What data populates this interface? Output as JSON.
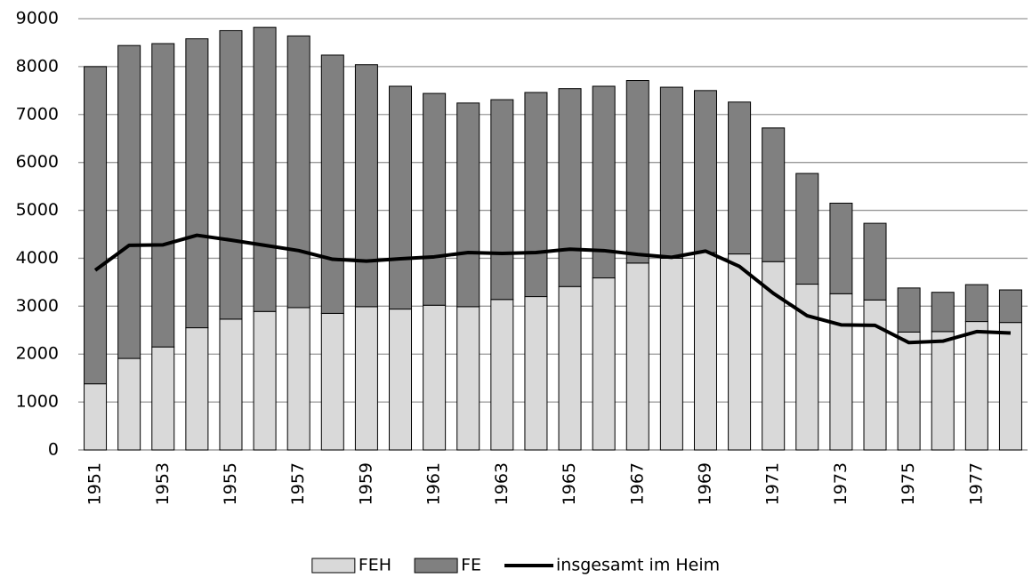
{
  "chart_data": {
    "type": "bar",
    "stacked": true,
    "categories": [
      "1951",
      null,
      "1953",
      null,
      "1955",
      null,
      "1957",
      null,
      "1959",
      null,
      "1961",
      null,
      "1963",
      null,
      "1965",
      null,
      "1967",
      null,
      "1969",
      null,
      "1971",
      null,
      "1973",
      null,
      "1975",
      null,
      "1977",
      null
    ],
    "series": [
      {
        "name": "FEH",
        "type": "bar",
        "color": "#d9d9d9",
        "values": [
          1380,
          1910,
          2150,
          2550,
          2730,
          2890,
          2970,
          2850,
          2990,
          2940,
          3020,
          2990,
          3140,
          3200,
          3410,
          3590,
          3900,
          4000,
          4120,
          4090,
          3930,
          3460,
          3260,
          3130,
          2460,
          2470,
          2680,
          2660
        ]
      },
      {
        "name": "FE",
        "type": "bar",
        "color": "#808080",
        "values": [
          6620,
          6530,
          6330,
          6030,
          6020,
          5930,
          5670,
          5390,
          5050,
          4650,
          4420,
          4250,
          4170,
          4260,
          4130,
          4000,
          3810,
          3570,
          3380,
          3170,
          2790,
          2310,
          1890,
          1600,
          920,
          820,
          770,
          680
        ]
      },
      {
        "name": "insgesamt im Heim",
        "type": "line",
        "color": "#000000",
        "values": [
          3750,
          4270,
          4280,
          4480,
          4380,
          4270,
          4160,
          3980,
          3940,
          3990,
          4030,
          4120,
          4100,
          4120,
          4190,
          4160,
          4080,
          4020,
          4150,
          3830,
          3270,
          2800,
          2610,
          2600,
          2240,
          2270,
          2470,
          2440
        ]
      }
    ],
    "ylim": [
      0,
      9000
    ],
    "yticks": [
      0,
      1000,
      2000,
      3000,
      4000,
      5000,
      6000,
      7000,
      8000,
      9000
    ],
    "grid": true,
    "legend": "bottom"
  }
}
